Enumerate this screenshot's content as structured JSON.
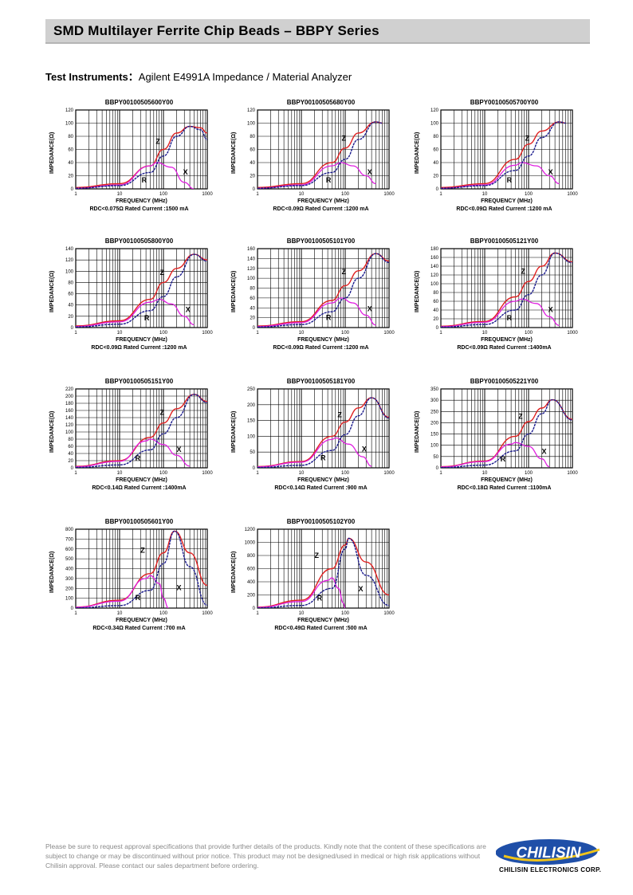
{
  "header": {
    "title": "SMD Multilayer Ferrite Chip Beads – BBPY Series"
  },
  "test_instruments": {
    "label": "Test Instruments：",
    "value": "Agilent E4991A Impedance / Material Analyzer"
  },
  "common": {
    "xlabel": "FREQUENCY (MHz)",
    "ylabel": "IMPEDANCE(Ω)",
    "x_ticks": [
      "1",
      "10",
      "100",
      "1000"
    ],
    "curve_labels": {
      "z": "Z",
      "r": "R",
      "x": "X"
    },
    "colors": {
      "z": "#e02020",
      "r": "#e020e0",
      "x": "#1a1a8c"
    }
  },
  "chart_data": [
    {
      "type": "line",
      "title": "BBPY00100505600Y00",
      "rdc": "RDC<0.075Ω Rated Current :1500 mA",
      "ylim": [
        0,
        120
      ],
      "y_ticks": [
        "0",
        "20",
        "40",
        "60",
        "80",
        "100",
        "120"
      ],
      "peak_f": 400,
      "z_peak": 95,
      "r_peak": 40,
      "r_peak_f": 70,
      "hf_drop": 0.2,
      "xlim": [
        1,
        1000
      ],
      "xscale": "log",
      "series": [
        {
          "name": "Z",
          "x": [
            1,
            10,
            50,
            100,
            200,
            400,
            700,
            1000
          ],
          "values": [
            2,
            8,
            35,
            60,
            85,
            95,
            93,
            85
          ]
        },
        {
          "name": "R",
          "x": [
            1,
            10,
            50,
            70,
            150,
            300,
            500
          ],
          "values": [
            1,
            6,
            35,
            40,
            33,
            10,
            0
          ]
        },
        {
          "name": "X",
          "x": [
            1,
            10,
            50,
            100,
            200,
            400,
            700,
            1000
          ],
          "values": [
            1,
            5,
            25,
            50,
            80,
            95,
            90,
            75
          ]
        }
      ]
    },
    {
      "type": "line",
      "title": "BBPY00100505680Y00",
      "rdc": "RDC<0.09Ω Rated Current :1200 mA",
      "ylim": [
        0,
        120
      ],
      "y_ticks": [
        "0",
        "20",
        "40",
        "60",
        "80",
        "100",
        "120"
      ],
      "peak_f": 500,
      "z_peak": 102,
      "r_peak": 40,
      "r_peak_f": 80,
      "hf_drop": 0.05,
      "xlim": [
        1,
        1000
      ],
      "xscale": "log",
      "series": [
        {
          "name": "Z",
          "x": [
            1,
            10,
            50,
            100,
            200,
            500,
            700
          ],
          "values": [
            2,
            8,
            40,
            62,
            85,
            102,
            100
          ]
        },
        {
          "name": "R",
          "x": [
            1,
            10,
            50,
            80,
            150,
            300,
            500
          ],
          "values": [
            1,
            6,
            35,
            40,
            35,
            20,
            8
          ]
        },
        {
          "name": "X",
          "x": [
            1,
            10,
            50,
            100,
            200,
            500,
            700
          ],
          "values": [
            1,
            5,
            25,
            45,
            75,
            102,
            100
          ]
        }
      ]
    },
    {
      "type": "line",
      "title": "BBPY00100505700Y00",
      "rdc": "RDC<0.09Ω Rated Current :1200 mA",
      "ylim": [
        0,
        120
      ],
      "y_ticks": [
        "0",
        "20",
        "40",
        "60",
        "80",
        "100",
        "120"
      ],
      "peak_f": 500,
      "z_peak": 102,
      "r_peak": 40,
      "r_peak_f": 70,
      "hf_drop": 0.05,
      "xlim": [
        1,
        1000
      ],
      "xscale": "log",
      "series": [
        {
          "name": "Z",
          "x": [
            1,
            10,
            50,
            100,
            200,
            500,
            700
          ],
          "values": [
            2,
            8,
            45,
            68,
            88,
            102,
            100
          ]
        },
        {
          "name": "R",
          "x": [
            1,
            10,
            50,
            70,
            150,
            300,
            500
          ],
          "values": [
            1,
            6,
            36,
            40,
            35,
            20,
            8
          ]
        },
        {
          "name": "X",
          "x": [
            1,
            10,
            50,
            100,
            200,
            500,
            700
          ],
          "values": [
            1,
            5,
            28,
            50,
            78,
            102,
            100
          ]
        }
      ]
    },
    {
      "type": "line",
      "title": "BBPY00100505800Y00",
      "rdc": "RDC<0.09Ω Rated Current :1200 mA",
      "ylim": [
        0,
        140
      ],
      "y_ticks": [
        "0",
        "20",
        "40",
        "60",
        "80",
        "100",
        "120",
        "140"
      ],
      "peak_f": 500,
      "z_peak": 130,
      "r_peak": 50,
      "r_peak_f": 80,
      "hf_drop": 0.1,
      "xlim": [
        1,
        1000
      ],
      "xscale": "log",
      "series": [
        {
          "name": "Z",
          "x": [
            1,
            10,
            50,
            100,
            200,
            500,
            1000
          ],
          "values": [
            3,
            12,
            50,
            80,
            105,
            130,
            120
          ]
        },
        {
          "name": "R",
          "x": [
            1,
            10,
            50,
            80,
            150,
            300,
            500
          ],
          "values": [
            2,
            10,
            45,
            50,
            42,
            20,
            5
          ]
        },
        {
          "name": "X",
          "x": [
            1,
            10,
            50,
            100,
            200,
            500,
            1000
          ],
          "values": [
            1,
            6,
            30,
            55,
            90,
            130,
            118
          ]
        }
      ]
    },
    {
      "type": "line",
      "title": "BBPY00100505101Y00",
      "rdc": "RDC<0.09Ω Rated Current :1200 mA",
      "ylim": [
        0,
        160
      ],
      "y_ticks": [
        "0",
        "20",
        "40",
        "60",
        "80",
        "100",
        "120",
        "140",
        "160"
      ],
      "peak_f": 500,
      "z_peak": 150,
      "r_peak": 60,
      "r_peak_f": 80,
      "hf_drop": 0.12,
      "xlim": [
        1,
        1000
      ],
      "xscale": "log",
      "series": [
        {
          "name": "Z",
          "x": [
            1,
            10,
            50,
            100,
            200,
            500,
            1000
          ],
          "values": [
            3,
            12,
            55,
            85,
            115,
            150,
            135
          ]
        },
        {
          "name": "R",
          "x": [
            1,
            10,
            50,
            80,
            150,
            300,
            500
          ],
          "values": [
            2,
            10,
            50,
            60,
            50,
            25,
            5
          ]
        },
        {
          "name": "X",
          "x": [
            1,
            10,
            50,
            100,
            200,
            500,
            1000
          ],
          "values": [
            1,
            6,
            32,
            60,
            100,
            150,
            132
          ]
        }
      ]
    },
    {
      "type": "line",
      "title": "BBPY00100505121Y00",
      "rdc": "RDC<0.09Ω Rated Current :1400mA",
      "ylim": [
        0,
        180
      ],
      "y_ticks": [
        "0",
        "20",
        "40",
        "60",
        "80",
        "100",
        "120",
        "140",
        "160",
        "180"
      ],
      "peak_f": 400,
      "z_peak": 170,
      "r_peak": 65,
      "r_peak_f": 70,
      "hf_drop": 0.12,
      "xlim": [
        1,
        1000
      ],
      "xscale": "log",
      "series": [
        {
          "name": "Z",
          "x": [
            1,
            10,
            50,
            100,
            200,
            400,
            1000
          ],
          "values": [
            3,
            14,
            70,
            105,
            140,
            170,
            150
          ]
        },
        {
          "name": "R",
          "x": [
            1,
            10,
            50,
            70,
            150,
            300,
            500
          ],
          "values": [
            2,
            12,
            60,
            65,
            55,
            25,
            5
          ]
        },
        {
          "name": "X",
          "x": [
            1,
            10,
            50,
            100,
            200,
            400,
            1000
          ],
          "values": [
            1,
            7,
            40,
            75,
            120,
            170,
            148
          ]
        }
      ]
    },
    {
      "type": "line",
      "title": "BBPY00100505151Y00",
      "rdc": "RDC<0.14Ω Rated Current :1400mA",
      "ylim": [
        0,
        220
      ],
      "y_ticks": [
        "0",
        "20",
        "40",
        "60",
        "80",
        "100",
        "120",
        "140",
        "160",
        "180",
        "200",
        "220"
      ],
      "peak_f": 500,
      "z_peak": 205,
      "r_peak": 80,
      "r_peak_f": 50,
      "hf_drop": 0.1,
      "xlim": [
        1,
        1000
      ],
      "xscale": "log",
      "series": [
        {
          "name": "Z",
          "x": [
            1,
            10,
            50,
            100,
            200,
            500,
            1000
          ],
          "values": [
            4,
            20,
            85,
            125,
            165,
            205,
            185
          ]
        },
        {
          "name": "R",
          "x": [
            1,
            10,
            40,
            50,
            100,
            200,
            400
          ],
          "values": [
            3,
            18,
            75,
            80,
            65,
            35,
            5
          ]
        },
        {
          "name": "X",
          "x": [
            1,
            10,
            50,
            100,
            200,
            500,
            1000
          ],
          "values": [
            1,
            8,
            50,
            95,
            140,
            205,
            182
          ]
        }
      ]
    },
    {
      "type": "line",
      "title": "BBPY00100505181Y00",
      "rdc": "RDC<0.14Ω Rated Current :900 mA",
      "ylim": [
        0,
        250
      ],
      "y_ticks": [
        "0",
        "50",
        "100",
        "150",
        "200",
        "250"
      ],
      "peak_f": 400,
      "z_peak": 222,
      "r_peak": 95,
      "r_peak_f": 60,
      "hf_drop": 0.3,
      "xlim": [
        1,
        1000
      ],
      "xscale": "log",
      "series": [
        {
          "name": "Z",
          "x": [
            1,
            10,
            50,
            100,
            200,
            400,
            1000
          ],
          "values": [
            4,
            20,
            100,
            145,
            190,
            222,
            160
          ]
        },
        {
          "name": "R",
          "x": [
            1,
            10,
            50,
            60,
            120,
            250,
            400
          ],
          "values": [
            3,
            18,
            90,
            95,
            75,
            35,
            5
          ]
        },
        {
          "name": "X",
          "x": [
            1,
            10,
            50,
            100,
            200,
            400,
            1000
          ],
          "values": [
            1,
            8,
            55,
            105,
            165,
            222,
            158
          ]
        }
      ]
    },
    {
      "type": "line",
      "title": "BBPY00100505221Y00",
      "rdc": "RDC<0.18Ω Rated Current :1100mA",
      "ylim": [
        0,
        350
      ],
      "y_ticks": [
        "0",
        "50",
        "100",
        "150",
        "200",
        "250",
        "300",
        "350"
      ],
      "peak_f": 350,
      "z_peak": 302,
      "r_peak": 112,
      "r_peak_f": 50,
      "hf_drop": 0.3,
      "xlim": [
        1,
        1000
      ],
      "xscale": "log",
      "series": [
        {
          "name": "Z",
          "x": [
            1,
            10,
            50,
            100,
            200,
            350,
            1000
          ],
          "values": [
            5,
            30,
            140,
            205,
            265,
            302,
            215
          ]
        },
        {
          "name": "R",
          "x": [
            1,
            10,
            40,
            50,
            100,
            200,
            300
          ],
          "values": [
            4,
            28,
            105,
            112,
            95,
            40,
            5
          ]
        },
        {
          "name": "X",
          "x": [
            1,
            10,
            50,
            100,
            200,
            350,
            1000
          ],
          "values": [
            1,
            12,
            75,
            150,
            240,
            302,
            212
          ]
        }
      ]
    },
    {
      "type": "line",
      "title": "BBPY00100505601Y00",
      "rdc": "RDC<0.34Ω Rated Current :700 mA",
      "ylim": [
        0,
        800
      ],
      "y_ticks": [
        "0",
        "100",
        "200",
        "300",
        "400",
        "500",
        "600",
        "700",
        "800"
      ],
      "peak_f": 180,
      "z_peak": 780,
      "r_peak": 330,
      "r_peak_f": 50,
      "hf_drop": 0.7,
      "xlim": [
        1,
        1000
      ],
      "xscale": "log",
      "series": [
        {
          "name": "Z",
          "x": [
            1,
            10,
            50,
            100,
            180,
            400,
            1000
          ],
          "values": [
            10,
            80,
            350,
            560,
            780,
            560,
            230
          ]
        },
        {
          "name": "R",
          "x": [
            1,
            10,
            40,
            50,
            80,
            100,
            130
          ],
          "values": [
            8,
            70,
            300,
            330,
            250,
            100,
            0
          ]
        },
        {
          "name": "X",
          "x": [
            1,
            10,
            50,
            100,
            180,
            400,
            1000
          ],
          "values": [
            2,
            25,
            180,
            450,
            780,
            420,
            30
          ]
        }
      ]
    },
    {
      "type": "line",
      "title": "BBPY00100505102Y00",
      "rdc": "RDC<0.49Ω Rated Current :500 mA",
      "ylim": [
        0,
        1200
      ],
      "y_ticks": [
        "0",
        "200",
        "400",
        "600",
        "800",
        "1000",
        "1200"
      ],
      "peak_f": 120,
      "z_peak": 1060,
      "r_peak": 460,
      "r_peak_f": 50,
      "hf_drop": 0.8,
      "xlim": [
        1,
        1000
      ],
      "xscale": "log",
      "series": [
        {
          "name": "Z",
          "x": [
            1,
            10,
            50,
            100,
            120,
            300,
            1000
          ],
          "values": [
            15,
            120,
            600,
            960,
            1060,
            700,
            200
          ]
        },
        {
          "name": "R",
          "x": [
            1,
            10,
            40,
            50,
            70,
            90,
            100
          ],
          "values": [
            10,
            100,
            420,
            460,
            300,
            80,
            0
          ]
        },
        {
          "name": "X",
          "x": [
            1,
            10,
            50,
            100,
            120,
            300,
            1000
          ],
          "values": [
            2,
            40,
            300,
            900,
            1060,
            500,
            40
          ]
        }
      ]
    }
  ],
  "footer": {
    "text": "Please be sure to request approval specifications that provide further details of the products. Kindly note that the content of these specifications are subject to change or may be discontinued without prior notice. This product may not be designed/used in medical or high risk applications without Chilisin approval. Please contact our sales department before ordering."
  },
  "logo": {
    "wordmark": "CHILISIN",
    "caption": "CHILISIN ELECTRONICS CORP.",
    "color": "#1f4fa8",
    "accent": "#f0c419"
  }
}
